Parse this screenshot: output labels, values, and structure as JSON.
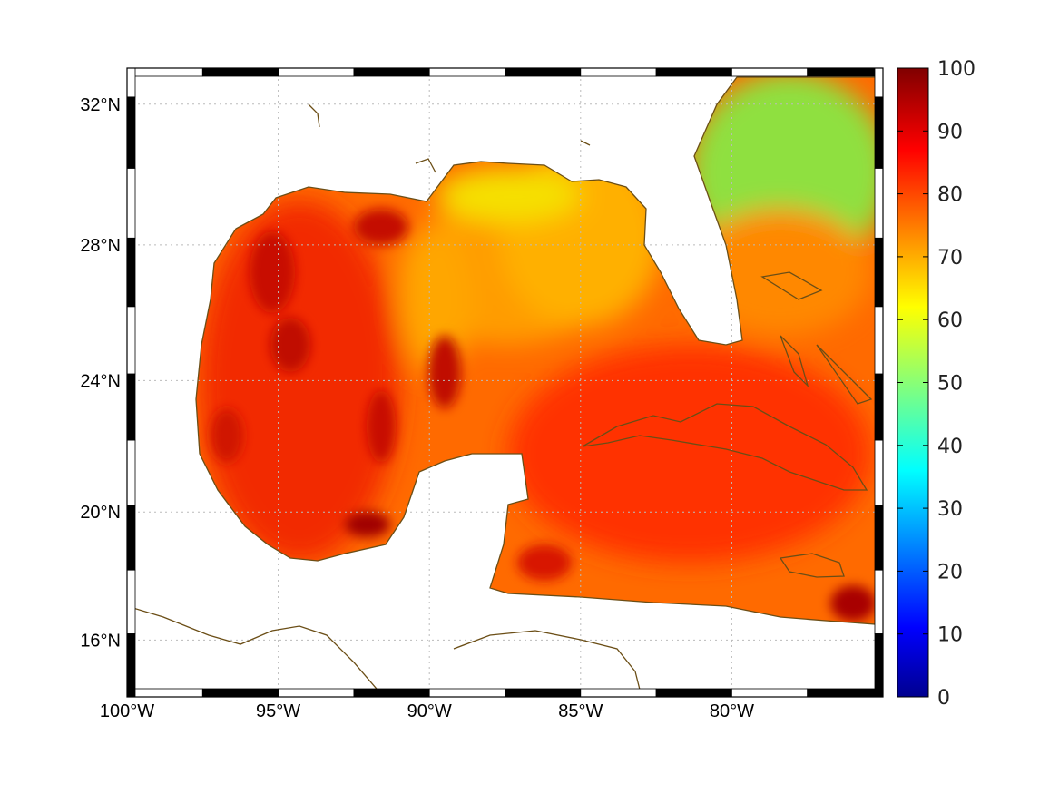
{
  "chart_data": {
    "type": "heatmap",
    "title": "",
    "xlabel": "",
    "ylabel": "",
    "projection": "mercator",
    "grid": true,
    "xlim": [
      -100,
      -75
    ],
    "ylim": [
      14.2,
      33.0
    ],
    "x_ticks": [
      {
        "value": -100,
        "label": "100°W"
      },
      {
        "value": -95,
        "label": "95°W"
      },
      {
        "value": -90,
        "label": "90°W"
      },
      {
        "value": -85,
        "label": "85°W"
      },
      {
        "value": -80,
        "label": "80°W"
      }
    ],
    "y_ticks": [
      {
        "value": 16,
        "label": "16°N"
      },
      {
        "value": 20,
        "label": "20°N"
      },
      {
        "value": 24,
        "label": "24°N"
      },
      {
        "value": 28,
        "label": "28°N"
      },
      {
        "value": 32,
        "label": "32°N"
      }
    ],
    "colorbar": {
      "min": 0,
      "max": 100,
      "colormap": "jet",
      "ticks": [
        "0",
        "10",
        "20",
        "30",
        "40",
        "50",
        "60",
        "70",
        "80",
        "90",
        "100"
      ]
    },
    "coastline_color": "#6b4e16",
    "field_description_regions": [
      {
        "name": "western-gulf",
        "approx_value": 85
      },
      {
        "name": "northern-gulf-coast",
        "approx_value": 65
      },
      {
        "name": "eastern-gulf",
        "approx_value": 75
      },
      {
        "name": "caribbean",
        "approx_value": 85
      },
      {
        "name": "atlantic-north",
        "approx_value": 62
      }
    ]
  }
}
